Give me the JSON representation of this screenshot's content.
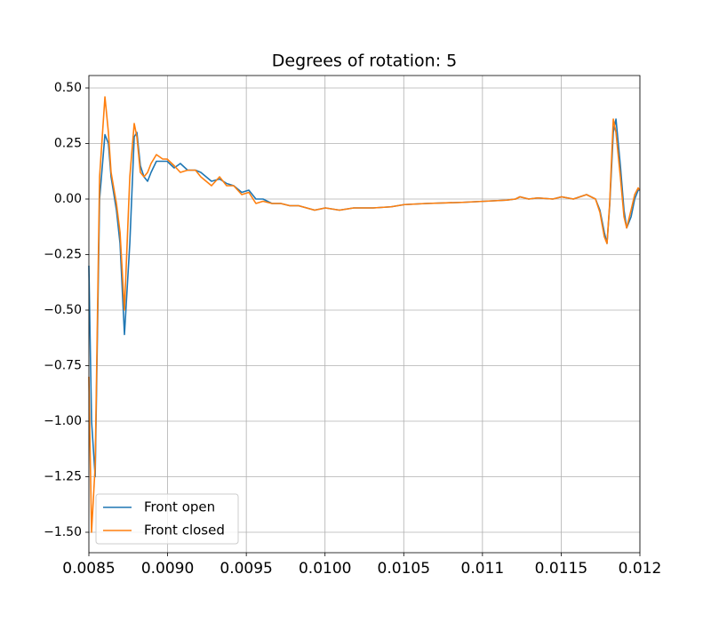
{
  "chart_data": {
    "type": "line",
    "title": "Degrees of rotation: 5",
    "x": [
      0.0085,
      0.008517,
      0.00854,
      0.008568,
      0.008602,
      0.008624,
      0.008641,
      0.008675,
      0.008698,
      0.008726,
      0.00876,
      0.008788,
      0.008805,
      0.008827,
      0.00885,
      0.008873,
      0.008895,
      0.008929,
      0.008969,
      0.008997,
      0.009042,
      0.009081,
      0.009127,
      0.009177,
      0.009211,
      0.009245,
      0.009279,
      0.00933,
      0.009375,
      0.00942,
      0.009471,
      0.009516,
      0.009561,
      0.009606,
      0.009663,
      0.009719,
      0.009776,
      0.009832,
      0.009883,
      0.009934,
      0.010002,
      0.010092,
      0.010182,
      0.010306,
      0.010419,
      0.010504,
      0.010645,
      0.010871,
      0.011012,
      0.011153,
      0.01121,
      0.011238,
      0.011294,
      0.011351,
      0.011447,
      0.011503,
      0.011577,
      0.011661,
      0.011718,
      0.011746,
      0.011774,
      0.011791,
      0.011808,
      0.011831,
      0.011848,
      0.011876,
      0.011899,
      0.011916,
      0.011944,
      0.011967,
      0.011989,
      0.012
    ],
    "series": [
      {
        "name": "Front open",
        "color": "#1f77b4",
        "values": [
          -0.3,
          -1.0,
          -1.25,
          0.0,
          0.29,
          0.25,
          0.1,
          -0.05,
          -0.2,
          -0.61,
          -0.2,
          0.28,
          0.3,
          0.15,
          0.1,
          0.08,
          0.12,
          0.17,
          0.17,
          0.17,
          0.14,
          0.16,
          0.13,
          0.13,
          0.12,
          0.1,
          0.08,
          0.09,
          0.07,
          0.06,
          0.03,
          0.04,
          0.0,
          0.0,
          -0.02,
          -0.02,
          -0.03,
          -0.03,
          -0.04,
          -0.05,
          -0.04,
          -0.05,
          -0.04,
          -0.04,
          -0.035,
          -0.025,
          -0.02,
          -0.015,
          -0.01,
          -0.005,
          0.0,
          0.01,
          0.0,
          0.005,
          0.0,
          0.01,
          0.0,
          0.02,
          0.0,
          -0.05,
          -0.15,
          -0.2,
          -0.03,
          0.3,
          0.36,
          0.15,
          -0.05,
          -0.13,
          -0.08,
          0.0,
          0.04,
          0.04
        ]
      },
      {
        "name": "Front closed",
        "color": "#ff7f0e",
        "values": [
          -0.8,
          -1.5,
          -1.2,
          0.1,
          0.46,
          0.3,
          0.12,
          -0.02,
          -0.15,
          -0.5,
          0.1,
          0.34,
          0.28,
          0.12,
          0.1,
          0.12,
          0.16,
          0.2,
          0.18,
          0.18,
          0.15,
          0.12,
          0.13,
          0.13,
          0.1,
          0.08,
          0.06,
          0.1,
          0.06,
          0.06,
          0.02,
          0.03,
          -0.02,
          -0.01,
          -0.02,
          -0.02,
          -0.03,
          -0.03,
          -0.04,
          -0.05,
          -0.04,
          -0.05,
          -0.04,
          -0.04,
          -0.035,
          -0.025,
          -0.02,
          -0.015,
          -0.01,
          -0.005,
          0.0,
          0.01,
          0.0,
          0.005,
          0.0,
          0.01,
          0.0,
          0.02,
          0.0,
          -0.06,
          -0.17,
          -0.2,
          -0.02,
          0.36,
          0.3,
          0.1,
          -0.08,
          -0.13,
          -0.05,
          0.02,
          0.05,
          0.04
        ]
      }
    ],
    "xlim": [
      0.0085,
      0.012
    ],
    "ylim": [
      -1.592,
      0.556
    ],
    "xticks": [
      0.0085,
      {
        "value": 0.009,
        "label": "0.0090"
      },
      0.0095,
      {
        "value": 0.01,
        "label": "0.0100"
      },
      0.0105,
      0.011,
      0.0115,
      0.012
    ],
    "yticks": [
      {
        "value": 0.5,
        "label": "0.50"
      },
      {
        "value": 0.25,
        "label": "0.25"
      },
      {
        "value": 0,
        "label": "0.00"
      },
      {
        "value": -0.25,
        "label": "−0.25"
      },
      {
        "value": -0.5,
        "label": "−0.50"
      },
      {
        "value": -0.75,
        "label": "−0.75"
      },
      {
        "value": -1,
        "label": "−1.00"
      },
      {
        "value": -1.25,
        "label": "−1.25"
      },
      {
        "value": -1.5,
        "label": "−1.50"
      }
    ],
    "grid": true,
    "legend": "lower left"
  }
}
